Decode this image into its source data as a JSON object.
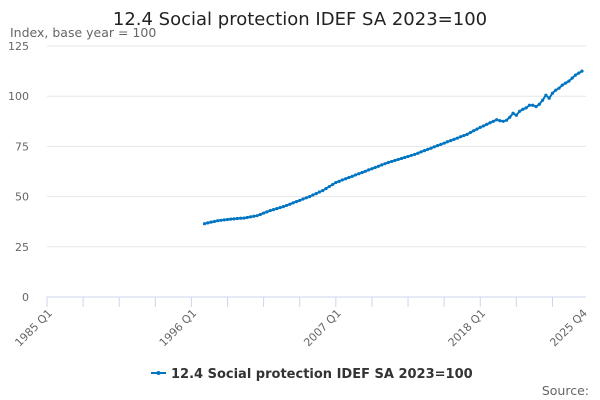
{
  "chart_data": {
    "type": "line",
    "title": "12.4 Social protection IDEF SA 2023=100",
    "ylabel": "Index, base year = 100",
    "xlabel": "",
    "ylim": [
      0,
      125
    ],
    "yticks": [
      0,
      25,
      50,
      75,
      100,
      125
    ],
    "xrange": [
      "1985 Q1",
      "2025 Q4"
    ],
    "xtick_labels": [
      "1985 Q1",
      "1996 Q1",
      "2007 Q1",
      "2018 Q1",
      "2025 Q4"
    ],
    "grid": "horizontal",
    "legend_position": "bottom",
    "source_label": "Source:",
    "color": "#0075c2",
    "series": [
      {
        "name": "12.4 Social protection IDEF SA 2023=100",
        "start": "1997 Q1",
        "frequency": "quarterly",
        "values": [
          36.5,
          36.9,
          37.3,
          37.6,
          38.0,
          38.2,
          38.4,
          38.6,
          38.8,
          38.9,
          39.1,
          39.2,
          39.3,
          39.6,
          39.9,
          40.2,
          40.5,
          41.1,
          41.8,
          42.4,
          43.0,
          43.5,
          44.0,
          44.5,
          45.0,
          45.6,
          46.2,
          46.9,
          47.5,
          48.1,
          48.8,
          49.4,
          50.0,
          50.8,
          51.5,
          52.3,
          53.0,
          54.0,
          55.0,
          56.0,
          57.0,
          57.6,
          58.3,
          58.9,
          59.5,
          60.1,
          60.8,
          61.4,
          62.0,
          62.6,
          63.3,
          63.9,
          64.5,
          65.1,
          65.8,
          66.4,
          67.0,
          67.5,
          68.0,
          68.5,
          69.0,
          69.5,
          70.0,
          70.5,
          71.0,
          71.6,
          72.3,
          72.9,
          73.5,
          74.1,
          74.8,
          75.4,
          76.0,
          76.6,
          77.3,
          77.9,
          78.5,
          79.1,
          79.8,
          80.4,
          81.0,
          81.9,
          82.8,
          83.6,
          84.5,
          85.2,
          86.0,
          86.8,
          87.5,
          88.3,
          87.8,
          87.5,
          88.0,
          89.5,
          91.5,
          90.5,
          92.5,
          93.5,
          94.2,
          95.5,
          95.5,
          94.8,
          96.0,
          98.0,
          100.5,
          99.0,
          101.5,
          103.0,
          104.0,
          105.5,
          106.5,
          107.5,
          109.0,
          110.5,
          111.5,
          112.5
        ]
      }
    ]
  }
}
